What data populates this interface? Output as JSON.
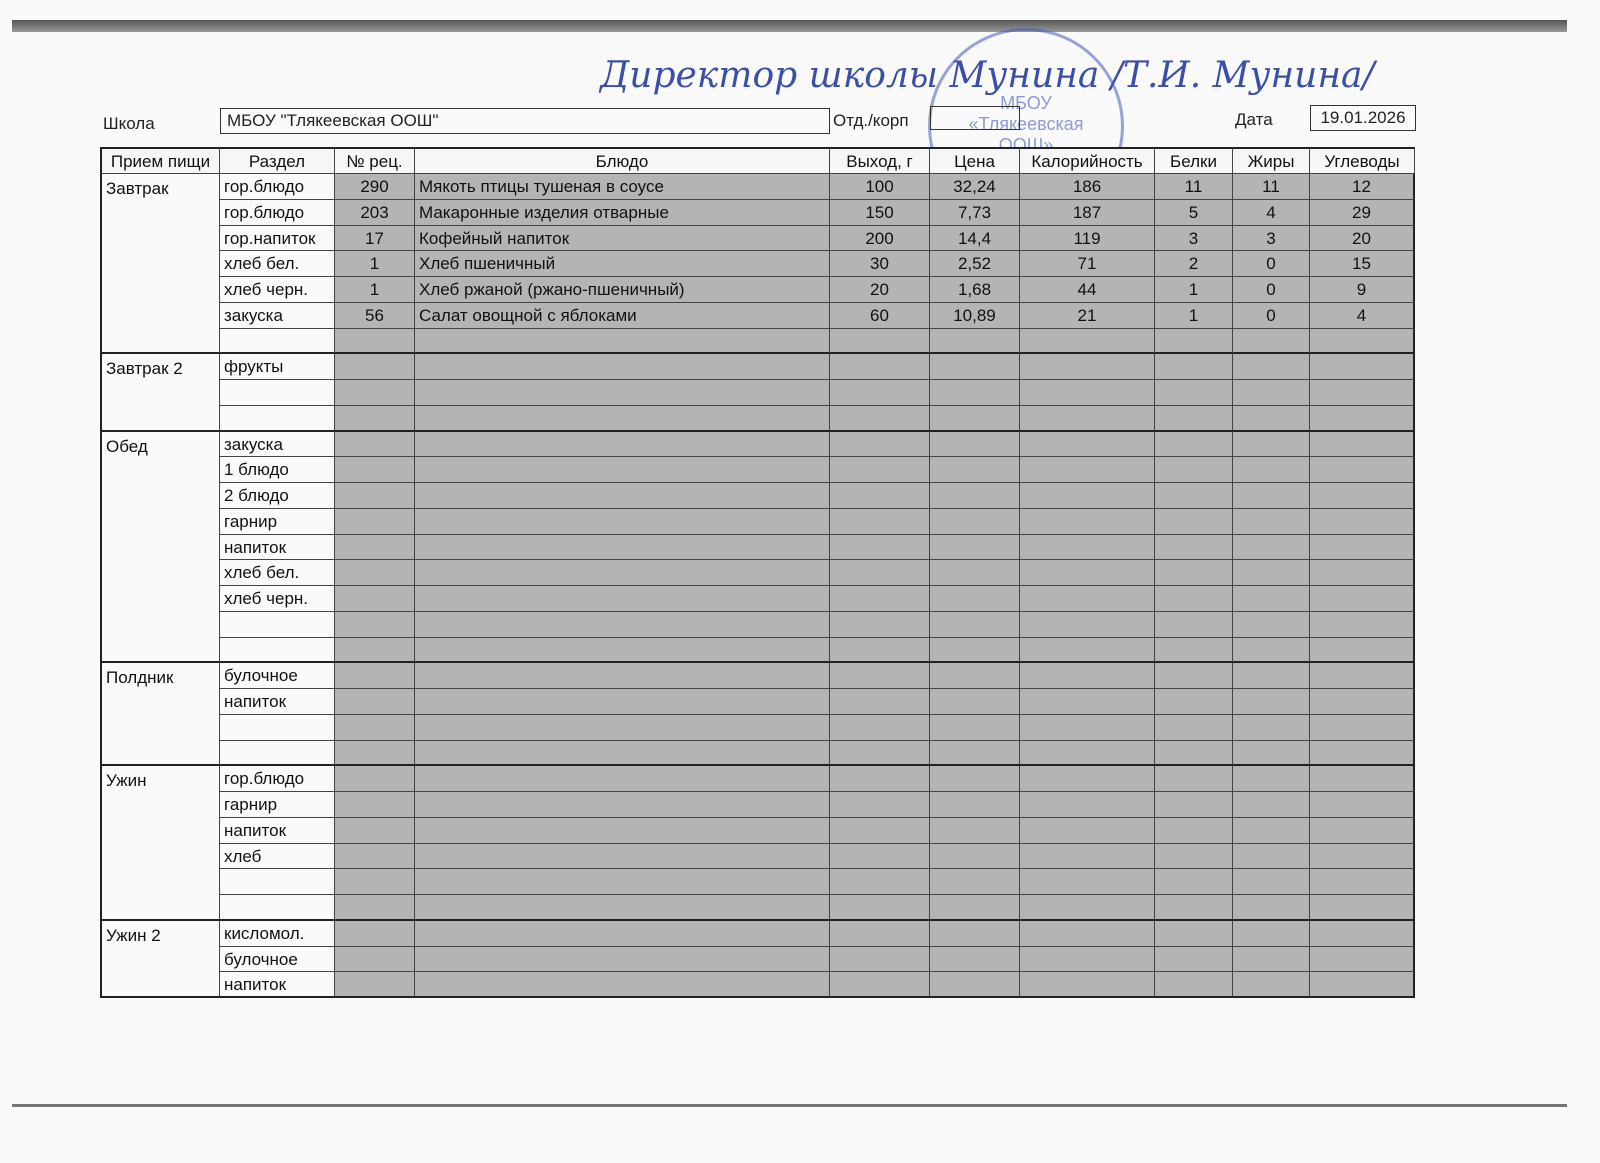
{
  "header": {
    "school_label": "Школа",
    "school": "МБОУ \"Тлякеевская ООШ\"",
    "dept_label": "Отд./корп",
    "date_label": "Дата",
    "date": "19.01.2026"
  },
  "signature": "Директор школы Мунина /Т.И. Мунина/",
  "stamp": [
    "МБОУ",
    "«Тлякеевская",
    "ООШ»"
  ],
  "table": {
    "columns": [
      "Прием пищи",
      "Раздел",
      "№ рец.",
      "Блюдо",
      "Выход, г",
      "Цена",
      "Калорийность",
      "Белки",
      "Жиры",
      "Углеводы"
    ],
    "sections": [
      {
        "meal": "Завтрак",
        "rows": [
          [
            "гор.блюдо",
            "290",
            "Мякоть птицы тушеная в соусе",
            "100",
            "32,24",
            "186",
            "11",
            "11",
            "12"
          ],
          [
            "гор.блюдо",
            "203",
            "Макаронные изделия отварные",
            "150",
            "7,73",
            "187",
            "5",
            "4",
            "29"
          ],
          [
            "гор.напиток",
            "17",
            "Кофейный напиток",
            "200",
            "14,4",
            "119",
            "3",
            "3",
            "20"
          ],
          [
            "хлеб бел.",
            "1",
            "Хлеб пшеничный",
            "30",
            "2,52",
            "71",
            "2",
            "0",
            "15"
          ],
          [
            "хлеб черн.",
            "1",
            "Хлеб ржаной (ржано-пшеничный)",
            "20",
            "1,68",
            "44",
            "1",
            "0",
            "9"
          ],
          [
            "закуска",
            "56",
            "Салат овощной с яблоками",
            "60",
            "10,89",
            "21",
            "1",
            "0",
            "4"
          ],
          [
            null,
            null,
            null,
            null,
            null,
            null,
            null,
            null,
            null
          ]
        ]
      },
      {
        "meal": "Завтрак 2",
        "rows": [
          [
            "фрукты",
            null,
            null,
            null,
            null,
            null,
            null,
            null,
            null
          ],
          [
            null,
            null,
            null,
            null,
            null,
            null,
            null,
            null,
            null
          ],
          [
            null,
            null,
            null,
            null,
            null,
            null,
            null,
            null,
            null
          ]
        ]
      },
      {
        "meal": "Обед",
        "rows": [
          [
            "закуска",
            null,
            null,
            null,
            null,
            null,
            null,
            null,
            null
          ],
          [
            "1 блюдо",
            null,
            null,
            null,
            null,
            null,
            null,
            null,
            null
          ],
          [
            "2 блюдо",
            null,
            null,
            null,
            null,
            null,
            null,
            null,
            null
          ],
          [
            "гарнир",
            null,
            null,
            null,
            null,
            null,
            null,
            null,
            null
          ],
          [
            "напиток",
            null,
            null,
            null,
            null,
            null,
            null,
            null,
            null
          ],
          [
            "хлеб бел.",
            null,
            null,
            null,
            null,
            null,
            null,
            null,
            null
          ],
          [
            "хлеб черн.",
            null,
            null,
            null,
            null,
            null,
            null,
            null,
            null
          ],
          [
            null,
            null,
            null,
            null,
            null,
            null,
            null,
            null,
            null
          ],
          [
            null,
            null,
            null,
            null,
            null,
            null,
            null,
            null,
            null
          ]
        ]
      },
      {
        "meal": "Полдник",
        "rows": [
          [
            "булочное",
            null,
            null,
            null,
            null,
            null,
            null,
            null,
            null
          ],
          [
            "напиток",
            null,
            null,
            null,
            null,
            null,
            null,
            null,
            null
          ],
          [
            null,
            null,
            null,
            null,
            null,
            null,
            null,
            null,
            null
          ],
          [
            null,
            null,
            null,
            null,
            null,
            null,
            null,
            null,
            null
          ]
        ]
      },
      {
        "meal": "Ужин",
        "rows": [
          [
            "гор.блюдо",
            null,
            null,
            null,
            null,
            null,
            null,
            null,
            null
          ],
          [
            "гарнир",
            null,
            null,
            null,
            null,
            null,
            null,
            null,
            null
          ],
          [
            "напиток",
            null,
            null,
            null,
            null,
            null,
            null,
            null,
            null
          ],
          [
            "хлеб",
            null,
            null,
            null,
            null,
            null,
            null,
            null,
            null
          ],
          [
            null,
            null,
            null,
            null,
            null,
            null,
            null,
            null,
            null
          ],
          [
            null,
            null,
            null,
            null,
            null,
            null,
            null,
            null,
            null
          ]
        ]
      },
      {
        "meal": "Ужин 2",
        "rows": [
          [
            "кисломол.",
            null,
            null,
            null,
            null,
            null,
            null,
            null,
            null
          ],
          [
            "булочное",
            null,
            null,
            null,
            null,
            null,
            null,
            null,
            null
          ],
          [
            "напиток",
            null,
            null,
            null,
            null,
            null,
            null,
            null,
            null
          ]
        ]
      }
    ]
  }
}
